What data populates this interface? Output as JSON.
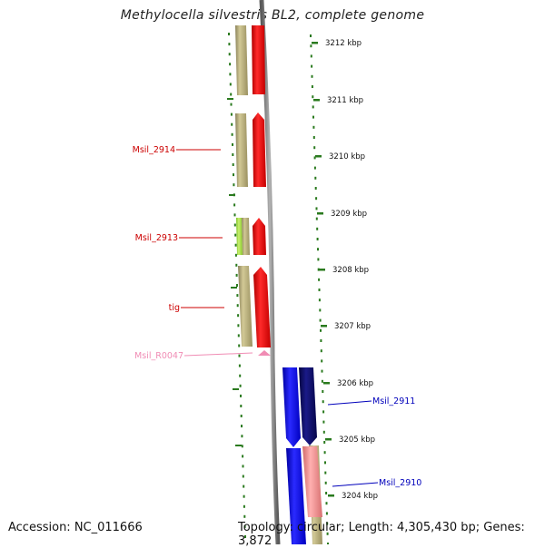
{
  "map": {
    "title": "Methylocella silvestris BL2, complete genome",
    "accession": "Accession: NC_011666",
    "topology": "Topology: circular; Length: 4,305,430 bp; Genes: 3,872"
  },
  "scale": {
    "ticks": [
      "3212 kbp",
      "3211 kbp",
      "3210 kbp",
      "3209 kbp",
      "3208 kbp",
      "3207 kbp",
      "3206 kbp",
      "3205 kbp",
      "3204 kbp"
    ]
  },
  "features": [
    {
      "label": "Msil_2914",
      "color": "#cc0000"
    },
    {
      "label": "Msil_2913",
      "color": "#cc0000"
    },
    {
      "label": "tig",
      "color": "#cc0000"
    },
    {
      "label": "Msil_R0047",
      "color": "#f08cb4"
    },
    {
      "label": "Msil_2911",
      "color": "#0000bb"
    },
    {
      "label": "Msil_2910",
      "color": "#0000bb"
    }
  ],
  "colors": {
    "backbone": "#8c8c8c",
    "tick": "#2a7a1e",
    "cog_tan": "#b5ac76",
    "cog_green": "#a8e04a",
    "forward_cds": "#ee1111",
    "reverse_cds": "#1a1aee",
    "reverse_dark": "#0a0a6e",
    "reverse_pink": "#ee8c8c",
    "rna": "#f06ea0"
  }
}
